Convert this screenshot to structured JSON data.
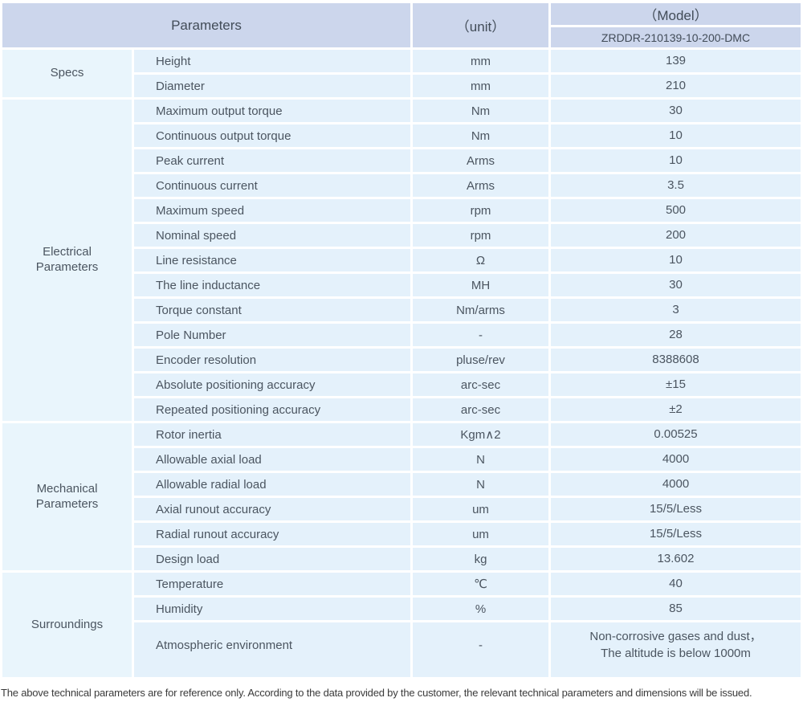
{
  "header": {
    "parameters_label": "Parameters",
    "unit_label": "（unit）",
    "model_label": "（Model）",
    "model_value": "ZRDDR-210139-10-200-DMC"
  },
  "sections": [
    {
      "label": "Specs",
      "rows": [
        {
          "name": "Height",
          "unit": "mm",
          "value": "139"
        },
        {
          "name": "Diameter",
          "unit": "mm",
          "value": "210"
        }
      ]
    },
    {
      "label": "Electrical\nParameters",
      "rows": [
        {
          "name": "Maximum output torque",
          "unit": "Nm",
          "value": "30"
        },
        {
          "name": "Continuous output torque",
          "unit": "Nm",
          "value": "10"
        },
        {
          "name": "Peak current",
          "unit": "Arms",
          "value": "10"
        },
        {
          "name": "Continuous current",
          "unit": "Arms",
          "value": "3.5"
        },
        {
          "name": "Maximum speed",
          "unit": "rpm",
          "value": "500"
        },
        {
          "name": "Nominal speed",
          "unit": "rpm",
          "value": "200"
        },
        {
          "name": "Line resistance",
          "unit": "Ω",
          "value": "10"
        },
        {
          "name": "The line inductance",
          "unit": "MH",
          "value": "30"
        },
        {
          "name": "Torque constant",
          "unit": "Nm/arms",
          "value": "3"
        },
        {
          "name": "Pole Number",
          "unit": "-",
          "value": "28"
        },
        {
          "name": "Encoder resolution",
          "unit": "pluse/rev",
          "value": "8388608"
        },
        {
          "name": "Absolute positioning accuracy",
          "unit": "arc-sec",
          "value": "±15"
        },
        {
          "name": "Repeated positioning accuracy",
          "unit": "arc-sec",
          "value": "±2"
        }
      ]
    },
    {
      "label": "Mechanical\nParameters",
      "rows": [
        {
          "name": "Rotor inertia",
          "unit": "Kgm∧2",
          "value": "0.00525"
        },
        {
          "name": "Allowable axial load",
          "unit": "N",
          "value": "4000"
        },
        {
          "name": "Allowable radial load",
          "unit": "N",
          "value": "4000"
        },
        {
          "name": "Axial runout accuracy",
          "unit": "um",
          "value": "15/5/Less"
        },
        {
          "name": "Radial runout accuracy",
          "unit": "um",
          "value": "15/5/Less"
        },
        {
          "name": "Design load",
          "unit": "kg",
          "value": "13.602"
        }
      ]
    },
    {
      "label": "Surroundings",
      "rows": [
        {
          "name": "Temperature",
          "unit": "℃",
          "value": "40"
        },
        {
          "name": "Humidity",
          "unit": "%",
          "value": "85"
        },
        {
          "name": "Atmospheric environment",
          "unit": "-",
          "value": "Non-corrosive gases and dust，\nThe altitude is below 1000m"
        }
      ]
    }
  ],
  "footer": {
    "note": "The above technical parameters are for reference only. According to the data provided by the customer, the relevant technical parameters and dimensions will be issued."
  },
  "colors": {
    "header_bg": "#ccd6ec",
    "row_bg": "#e4f1fb",
    "section_bg": "#e9f5fc",
    "text_color": "#4b5560",
    "footer_color": "#3b3b3b"
  }
}
